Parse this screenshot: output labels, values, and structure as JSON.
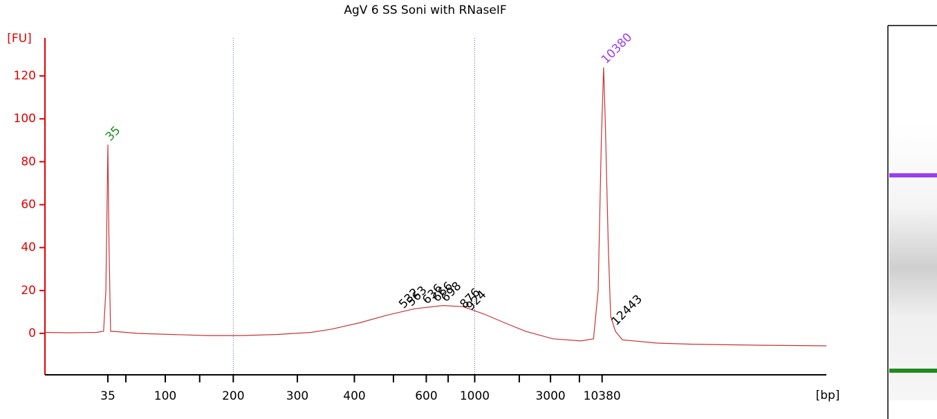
{
  "chart_data": {
    "type": "line",
    "title": "AgV 6 SS Soni with RNaseIF",
    "y_label": "[FU]",
    "x_label": "[bp]",
    "color": "#c83232",
    "axis_color": "#e00000",
    "xlim": [
      0,
      100
    ],
    "ylim": [
      -19.3,
      137.7
    ],
    "yticks": [
      0,
      20,
      40,
      60,
      80,
      100,
      120
    ],
    "xticks": [
      {
        "value": 8.05,
        "label": "35"
      },
      {
        "value": 10.35,
        "label": null
      },
      {
        "value": 15.4,
        "label": "100"
      },
      {
        "value": 19.8,
        "label": null
      },
      {
        "value": 24.1,
        "label": "200"
      },
      {
        "value": 32.3,
        "label": "300"
      },
      {
        "value": 39.6,
        "label": "400"
      },
      {
        "value": 44.6,
        "label": null
      },
      {
        "value": 48.8,
        "label": "600"
      },
      {
        "value": 51.6,
        "label": null
      },
      {
        "value": 55.0,
        "label": "1000"
      },
      {
        "value": 60.7,
        "label": null
      },
      {
        "value": 64.7,
        "label": "3000"
      },
      {
        "value": 68.4,
        "label": null
      },
      {
        "value": 71.3,
        "label": "10380"
      }
    ],
    "vlines": [
      24.1,
      55.0
    ],
    "x": [
      0,
      3.1,
      6.6,
      7.5,
      7.8,
      8.05,
      8.2,
      8.4,
      9.3,
      11.9,
      16.4,
      20.8,
      25.2,
      29.6,
      34.1,
      36.7,
      40.3,
      43.8,
      47.3,
      50.9,
      53.5,
      56.2,
      58.8,
      61.5,
      65.0,
      68.6,
      70.2,
      70.8,
      71.2,
      71.5,
      71.7,
      72.1,
      72.4,
      73.0,
      73.9,
      78.3,
      82.7,
      91.6,
      100
    ],
    "values": [
      0.5,
      0.3,
      0.5,
      1,
      20,
      88,
      40,
      1,
      0.8,
      0,
      -0.5,
      -1,
      -1,
      -0.5,
      0.5,
      2,
      5,
      8.5,
      11.5,
      13,
      12.5,
      9,
      5,
      1,
      -2.5,
      -3.5,
      -2.5,
      20,
      90,
      124,
      100,
      40,
      8,
      1,
      -3,
      -4.5,
      -5,
      -5.5,
      -5.8
    ],
    "peaks": [
      {
        "bp": 35,
        "x": 8.05,
        "y": 88,
        "color": "#1f8a1f"
      },
      {
        "bp": 532,
        "x": 45.6,
        "y": 10,
        "color": "#000000"
      },
      {
        "bp": 563,
        "x": 46.6,
        "y": 11,
        "color": "#000000"
      },
      {
        "bp": 636,
        "x": 48.6,
        "y": 12,
        "color": "#000000"
      },
      {
        "bp": 666,
        "x": 49.9,
        "y": 13,
        "color": "#000000"
      },
      {
        "bp": 698,
        "x": 51.0,
        "y": 13,
        "color": "#000000"
      },
      {
        "bp": 876,
        "x": 53.4,
        "y": 10,
        "color": "#000000"
      },
      {
        "bp": 924,
        "x": 54.2,
        "y": 9,
        "color": "#000000"
      },
      {
        "bp": 10380,
        "x": 71.5,
        "y": 124,
        "color": "#9b3cf0"
      },
      {
        "bp": 12443,
        "x": 72.8,
        "y": 2,
        "color": "#000000"
      }
    ]
  }
}
